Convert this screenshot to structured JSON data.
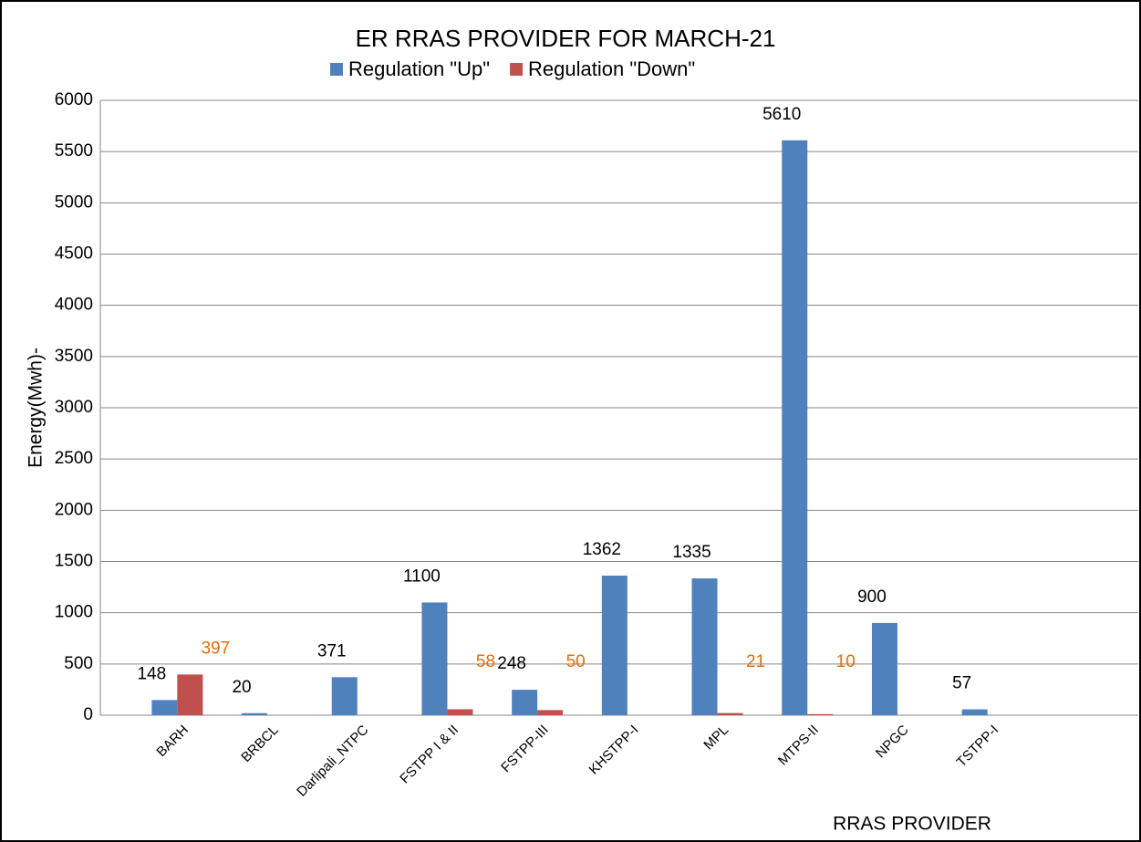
{
  "chart_data": {
    "type": "bar",
    "title": "ER RRAS PROVIDER FOR MARCH-21",
    "x_label": "RRAS PROVIDER",
    "y_label": "Energy(Mwh)-",
    "categories": [
      "BARH",
      "BRBCL",
      "Darlipali_NTPC",
      "FSTPP I & II",
      "FSTPP-III",
      "KHSTPP-I",
      "MPL",
      "MTPS-II",
      "NPGC",
      "TSTPP-I"
    ],
    "series": [
      {
        "name": "Regulation \"Up\"",
        "color": "#4f81bd",
        "label_color": "#000000",
        "values": [
          148,
          20,
          371,
          1100,
          248,
          1362,
          1335,
          5610,
          900,
          57
        ]
      },
      {
        "name": "Regulation \"Down\"",
        "color": "#c0504d",
        "label_color": "#e46c0a",
        "values": [
          397,
          null,
          null,
          58,
          50,
          null,
          21,
          10,
          null,
          null
        ]
      }
    ],
    "ylim": [
      0,
      6000
    ],
    "yticks": [
      0,
      500,
      1000,
      1500,
      2000,
      2500,
      3000,
      3500,
      4000,
      4500,
      5000,
      5500,
      6000
    ],
    "grid": true,
    "legend": "top"
  }
}
